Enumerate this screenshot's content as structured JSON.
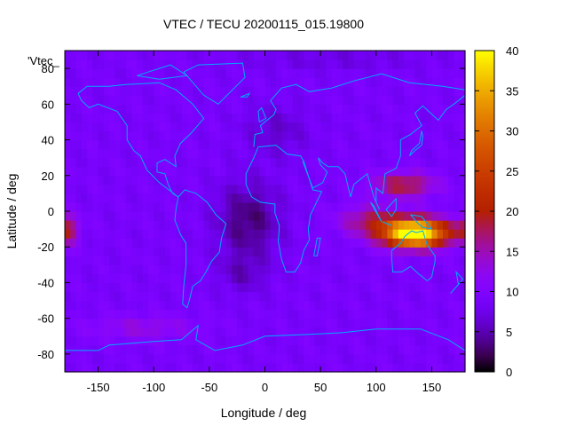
{
  "chart_data": {
    "type": "heatmap",
    "title": "VTEC / TECU 20200115_015.19800",
    "xlabel": "Longitude / deg",
    "ylabel": "Latitude / deg",
    "key_label": "'Vtec_",
    "xlim": [
      -180,
      180
    ],
    "ylim": [
      -90,
      90
    ],
    "xticks": [
      -150,
      -100,
      -50,
      0,
      50,
      100,
      150
    ],
    "yticks": [
      -80,
      -60,
      -40,
      -20,
      0,
      20,
      40,
      60,
      80
    ],
    "colorbar": {
      "min": 0,
      "max": 40,
      "ticks": [
        0,
        5,
        10,
        15,
        20,
        25,
        30,
        35,
        40
      ]
    },
    "grid_step_deg": 5,
    "background_tecu": 9,
    "features": [
      {
        "name": "equatorial anomaly Asia-Australia",
        "lon": 135,
        "lat": -12,
        "peak_tecu": 36,
        "lon_width": 40,
        "lat_width": 11
      },
      {
        "name": "northern crest Asia",
        "lon": 125,
        "lat": 15,
        "peak_tecu": 10,
        "lon_width": 40,
        "lat_width": 10
      },
      {
        "name": "equatorial band Indian Ocean",
        "lon": 95,
        "lat": -5,
        "peak_tecu": 8,
        "lon_width": 40,
        "lat_width": 12
      },
      {
        "name": "eastern Pacific enhancement",
        "lon": -178,
        "lat": -10,
        "peak_tecu": 9,
        "lon_width": 14,
        "lat_width": 12
      },
      {
        "name": "depletion Atlantic/Africa",
        "lon": -15,
        "lat": -5,
        "peak_tecu": -6,
        "lon_width": 40,
        "lat_width": 30
      },
      {
        "name": "depletion South Atlantic",
        "lon": -20,
        "lat": -35,
        "peak_tecu": -3,
        "lon_width": 30,
        "lat_width": 15
      },
      {
        "name": "depletion North Africa/Europe",
        "lon": 10,
        "lat": 45,
        "peak_tecu": -3,
        "lon_width": 40,
        "lat_width": 20
      },
      {
        "name": "southern Pacific band",
        "lon": -110,
        "lat": -65,
        "peak_tecu": 4,
        "lon_width": 70,
        "lat_width": 10
      },
      {
        "name": "polar north depletion",
        "lon": 60,
        "lat": 85,
        "peak_tecu": -2,
        "lon_width": 120,
        "lat_width": 8
      }
    ]
  },
  "coastline_color": "#00aaff"
}
